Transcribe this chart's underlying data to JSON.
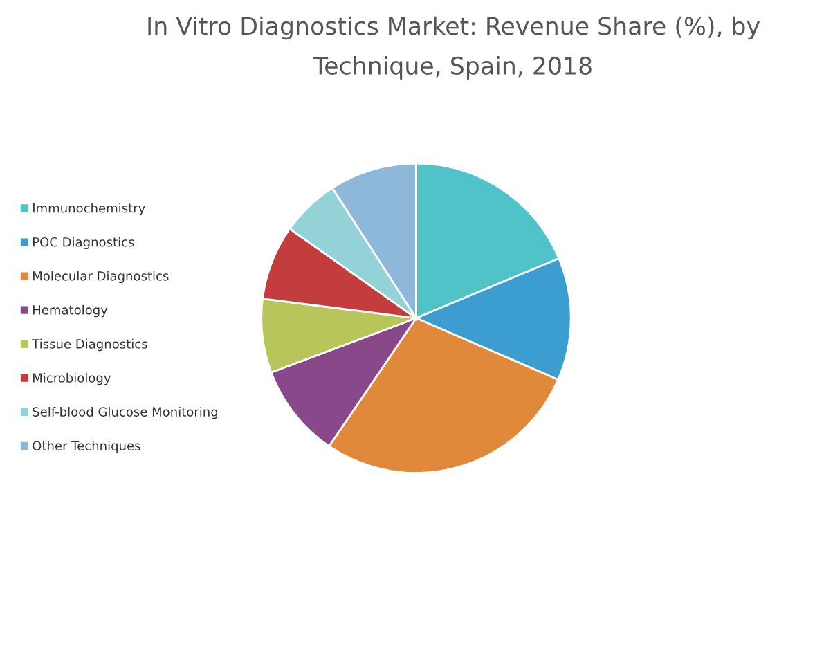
{
  "chart_data": {
    "type": "pie",
    "title": "In Vitro Diagnostics Market: Revenue Share (%), by\nTechnique, Spain, 2018",
    "categories": [
      "Immunochemistry",
      "POC Diagnostics",
      "Molecular Diagnostics",
      "Hematology",
      "Tissue Diagnostics",
      "Microbiology",
      "Self-blood Glucose Monitoring",
      "Other Techniques"
    ],
    "values": [
      18.7,
      12.8,
      28.0,
      9.8,
      7.7,
      7.8,
      6.1,
      9.1
    ],
    "colors": [
      "#4fc3c8",
      "#3c9dd0",
      "#e0893a",
      "#89488a",
      "#b8c55a",
      "#c43d3e",
      "#93d3d7",
      "#8db8da"
    ],
    "legend": "left"
  }
}
